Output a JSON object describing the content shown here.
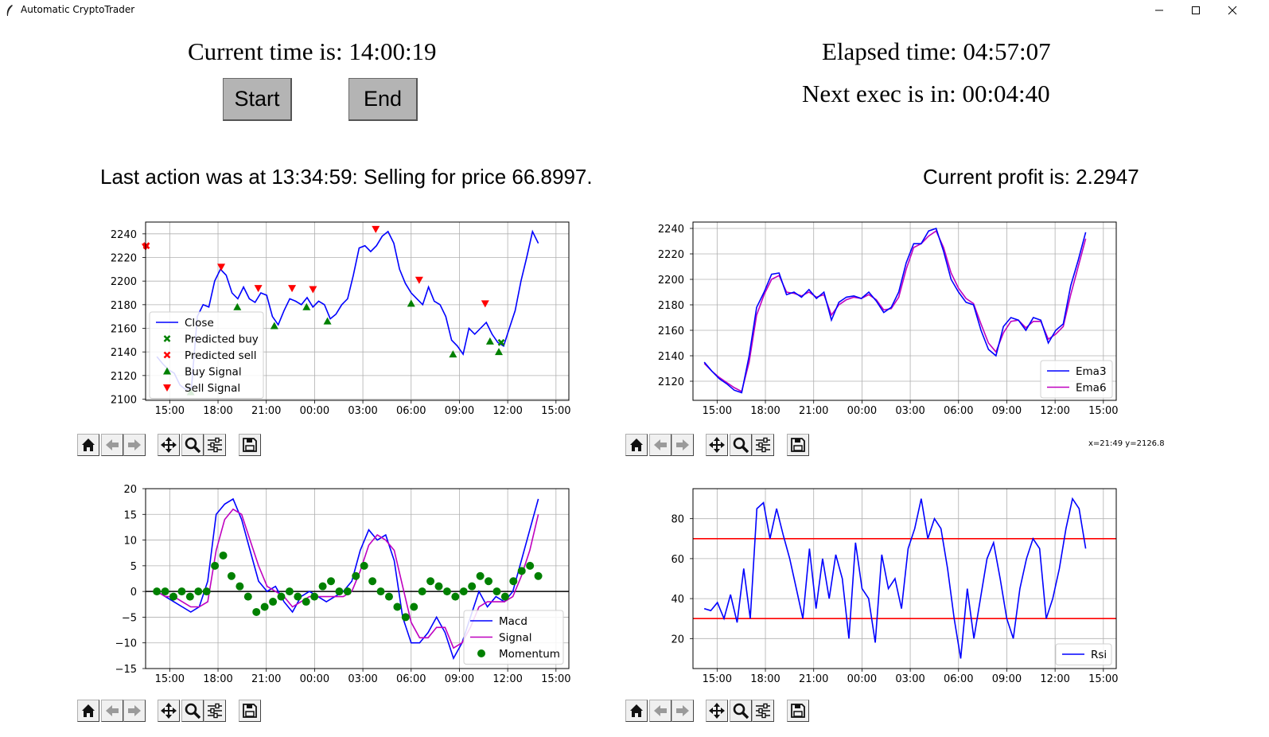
{
  "window": {
    "title": "Automatic CryptoTrader"
  },
  "header": {
    "current_time": "Current time is: 14:00:19",
    "elapsed_time": "Elapsed time: 04:57:07",
    "next_exec": "Next exec is in: 00:04:40",
    "last_action": "Last action was at 13:34:59: Selling for price 66.8997.",
    "current_profit": "Current profit is: 2.2947",
    "start_label": "Start",
    "end_label": "End"
  },
  "status": {
    "coords": "x=21:49 y=2126.8"
  },
  "toolbar_icons": [
    "home-icon",
    "back-arrow-icon",
    "forward-arrow-icon",
    "pan-icon",
    "zoom-icon",
    "configure-subplots-icon",
    "save-icon"
  ],
  "colors": {
    "blue": "#0000ff",
    "magenta": "#bf00bf",
    "green": "#008000",
    "red": "#ff0000"
  },
  "chart_data": [
    {
      "type": "line",
      "id": "price",
      "x_ticks": [
        "15:00",
        "18:00",
        "21:00",
        "00:00",
        "03:00",
        "06:00",
        "09:00",
        "12:00",
        "15:00"
      ],
      "y_ticks": [
        2100,
        2120,
        2140,
        2160,
        2180,
        2200,
        2220,
        2240
      ],
      "ylim": [
        2099,
        2250
      ],
      "grid": true,
      "legend": {
        "placement": "lower-left",
        "entries": [
          "Close",
          "Predicted buy",
          "Predicted sell",
          "Buy Signal",
          "Sell Signal"
        ]
      },
      "series": [
        {
          "name": "Close",
          "values": [
            2136,
            2130,
            2125,
            2122,
            2112,
            2108,
            2110,
            2170,
            2180,
            2178,
            2200,
            2210,
            2205,
            2190,
            2185,
            2195,
            2185,
            2182,
            2190,
            2188,
            2170,
            2163,
            2175,
            2185,
            2183,
            2180,
            2186,
            2178,
            2183,
            2180,
            2168,
            2172,
            2180,
            2185,
            2205,
            2228,
            2230,
            2225,
            2230,
            2238,
            2242,
            2232,
            2210,
            2198,
            2190,
            2185,
            2180,
            2195,
            2183,
            2180,
            2170,
            2150,
            2145,
            2138,
            2160,
            2155,
            2160,
            2165,
            2155,
            2148,
            2145,
            2160,
            2175,
            2200,
            2220,
            2242,
            2232
          ]
        },
        {
          "name": "Predicted buy",
          "points": [
            [
              11.6,
              2148
            ]
          ]
        },
        {
          "name": "Predicted sell",
          "points": [
            [
              13.55,
              2230
            ]
          ]
        },
        {
          "name": "Buy Signal",
          "points": [
            [
              16.3,
              2106
            ],
            [
              19.2,
              2178
            ],
            [
              21.5,
              2162
            ],
            [
              23.5,
              2178
            ],
            [
              24.8,
              2166
            ],
            [
              6.0,
              2181
            ],
            [
              8.6,
              2138
            ],
            [
              10.9,
              2149
            ],
            [
              11.45,
              2140
            ]
          ]
        },
        {
          "name": "Sell Signal",
          "points": [
            [
              18.2,
              2212
            ],
            [
              20.5,
              2194
            ],
            [
              22.6,
              2194
            ],
            [
              23.9,
              2193
            ],
            [
              3.8,
              2244
            ],
            [
              6.5,
              2201
            ],
            [
              10.6,
              2181
            ],
            [
              13.5,
              2229
            ]
          ]
        }
      ]
    },
    {
      "type": "line",
      "id": "ema",
      "x_ticks": [
        "15:00",
        "18:00",
        "21:00",
        "00:00",
        "03:00",
        "06:00",
        "09:00",
        "12:00",
        "15:00"
      ],
      "y_ticks": [
        2120,
        2140,
        2160,
        2180,
        2200,
        2220,
        2240
      ],
      "ylim": [
        2105,
        2245
      ],
      "grid": true,
      "legend": {
        "placement": "lower-right",
        "entries": [
          "Ema3",
          "Ema6"
        ]
      },
      "series": [
        {
          "name": "Ema3",
          "values": [
            2135,
            2128,
            2122,
            2118,
            2113,
            2111,
            2140,
            2178,
            2190,
            2204,
            2205,
            2188,
            2190,
            2186,
            2192,
            2185,
            2190,
            2168,
            2182,
            2186,
            2187,
            2185,
            2190,
            2183,
            2174,
            2178,
            2190,
            2213,
            2228,
            2228,
            2238,
            2240,
            2222,
            2200,
            2190,
            2182,
            2180,
            2160,
            2145,
            2140,
            2163,
            2170,
            2168,
            2160,
            2170,
            2168,
            2150,
            2160,
            2165,
            2195,
            2215,
            2237
          ]
        },
        {
          "name": "Ema6",
          "values": [
            2134,
            2128,
            2123,
            2119,
            2115,
            2112,
            2135,
            2172,
            2188,
            2200,
            2203,
            2190,
            2189,
            2187,
            2190,
            2186,
            2188,
            2172,
            2180,
            2184,
            2186,
            2185,
            2188,
            2184,
            2176,
            2177,
            2186,
            2208,
            2225,
            2228,
            2234,
            2238,
            2225,
            2205,
            2193,
            2185,
            2181,
            2165,
            2150,
            2143,
            2158,
            2167,
            2168,
            2162,
            2167,
            2167,
            2153,
            2157,
            2163,
            2188,
            2210,
            2232
          ]
        }
      ]
    },
    {
      "type": "line",
      "id": "macd",
      "x_ticks": [
        "15:00",
        "18:00",
        "21:00",
        "00:00",
        "03:00",
        "06:00",
        "09:00",
        "12:00",
        "15:00"
      ],
      "y_ticks": [
        20,
        15,
        10,
        5,
        0,
        -5,
        -10,
        -15
      ],
      "ylim": [
        -15,
        20
      ],
      "grid": true,
      "legend": {
        "placement": "lower-right",
        "entries": [
          "Macd",
          "Signal",
          "Momentum"
        ]
      },
      "series": [
        {
          "name": "Macd",
          "values": [
            0,
            -1,
            -2,
            -3,
            -4,
            -3,
            2,
            15,
            17,
            18,
            14,
            8,
            2,
            0,
            1,
            -2,
            -4,
            -1,
            0,
            -1,
            -2,
            -1,
            0,
            2,
            8,
            12,
            10,
            11,
            6,
            -5,
            -10,
            -10,
            -8,
            -5,
            -8,
            -13,
            -10,
            -5,
            0,
            -3,
            -1,
            -2,
            0,
            6,
            12,
            18
          ]
        },
        {
          "name": "Signal",
          "values": [
            0,
            -1,
            -1,
            -2,
            -3,
            -3,
            -2,
            8,
            14,
            16,
            15,
            10,
            5,
            1,
            0,
            -1,
            -3,
            -2,
            -1,
            -1,
            -1,
            -1,
            -1,
            0,
            4,
            9,
            11,
            10,
            8,
            1,
            -6,
            -9,
            -9,
            -7,
            -7,
            -11,
            -10,
            -7,
            -3,
            -2,
            -2,
            -2,
            -1,
            3,
            8,
            15
          ]
        },
        {
          "name": "Momentum",
          "values": [
            0,
            0,
            -1,
            0,
            -1,
            0,
            0,
            5,
            7,
            3,
            1,
            -1,
            -4,
            -3,
            -2,
            -1,
            0,
            -1,
            -2,
            -1,
            1,
            2,
            0,
            0,
            3,
            5,
            2,
            0,
            -1,
            -3,
            -5,
            -3,
            0,
            2,
            1,
            0,
            -1,
            0,
            1,
            3,
            2,
            0,
            -1,
            2,
            4,
            5,
            3
          ]
        }
      ]
    },
    {
      "type": "line",
      "id": "rsi",
      "x_ticks": [
        "15:00",
        "18:00",
        "21:00",
        "00:00",
        "03:00",
        "06:00",
        "09:00",
        "12:00",
        "15:00"
      ],
      "y_ticks": [
        20,
        40,
        60,
        80
      ],
      "ylim": [
        5,
        95
      ],
      "grid": true,
      "hlines": [
        30,
        70
      ],
      "legend": {
        "placement": "lower-right",
        "entries": [
          "Rsi"
        ]
      },
      "series": [
        {
          "name": "Rsi",
          "values": [
            35,
            34,
            38,
            30,
            42,
            28,
            55,
            30,
            85,
            88,
            70,
            85,
            72,
            60,
            45,
            30,
            65,
            35,
            60,
            40,
            62,
            50,
            20,
            68,
            45,
            40,
            18,
            62,
            45,
            50,
            35,
            65,
            75,
            90,
            70,
            80,
            75,
            55,
            30,
            10,
            45,
            20,
            40,
            60,
            68,
            50,
            30,
            20,
            45,
            60,
            70,
            65,
            30,
            40,
            55,
            75,
            90,
            85,
            65
          ]
        }
      ]
    }
  ]
}
